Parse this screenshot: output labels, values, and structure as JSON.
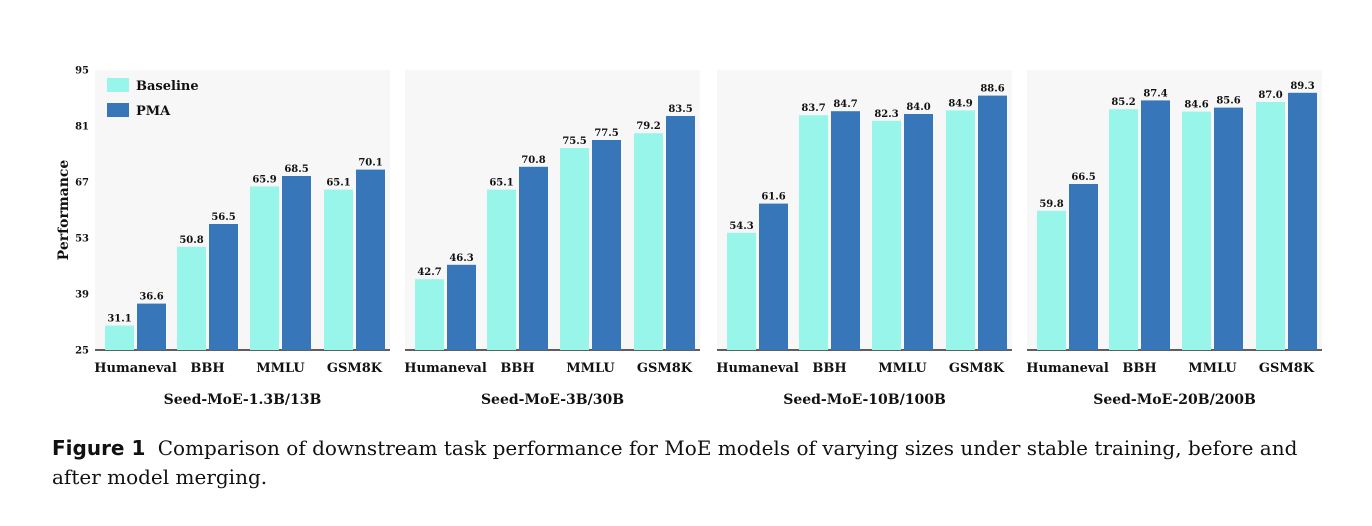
{
  "chart_data": {
    "type": "bar",
    "ylabel": "Performance",
    "ylim": [
      25,
      95
    ],
    "yticks": [
      25,
      39,
      53,
      67,
      81,
      95
    ],
    "grid": false,
    "legend": {
      "placement": "top-left",
      "entries": [
        "Baseline",
        "PMA"
      ]
    },
    "colors": {
      "Baseline": "#98f5e9",
      "PMA": "#3776b9"
    },
    "panels": [
      {
        "subtitle": "Seed-MoE-1.3B/13B",
        "categories": [
          "Humaneval",
          "BBH",
          "MMLU",
          "GSM8K"
        ],
        "series": [
          {
            "name": "Baseline",
            "values": [
              31.1,
              50.8,
              65.9,
              65.1
            ]
          },
          {
            "name": "PMA",
            "values": [
              36.6,
              56.5,
              68.5,
              70.1
            ]
          }
        ]
      },
      {
        "subtitle": "Seed-MoE-3B/30B",
        "categories": [
          "Humaneval",
          "BBH",
          "MMLU",
          "GSM8K"
        ],
        "series": [
          {
            "name": "Baseline",
            "values": [
              42.7,
              65.1,
              75.5,
              79.2
            ]
          },
          {
            "name": "PMA",
            "values": [
              46.3,
              70.8,
              77.5,
              83.5
            ]
          }
        ]
      },
      {
        "subtitle": "Seed-MoE-10B/100B",
        "categories": [
          "Humaneval",
          "BBH",
          "MMLU",
          "GSM8K"
        ],
        "series": [
          {
            "name": "Baseline",
            "values": [
              54.3,
              83.7,
              82.3,
              84.9
            ]
          },
          {
            "name": "PMA",
            "values": [
              61.6,
              84.7,
              84.0,
              88.6
            ]
          }
        ]
      },
      {
        "subtitle": "Seed-MoE-20B/200B",
        "categories": [
          "Humaneval",
          "BBH",
          "MMLU",
          "GSM8K"
        ],
        "series": [
          {
            "name": "Baseline",
            "values": [
              59.8,
              85.2,
              84.6,
              87.0
            ]
          },
          {
            "name": "PMA",
            "values": [
              66.5,
              87.4,
              85.6,
              89.3
            ]
          }
        ]
      }
    ]
  },
  "caption": {
    "label": "Figure 1",
    "text": "Comparison of downstream task performance for MoE models of varying sizes under stable training, before and after model merging."
  }
}
